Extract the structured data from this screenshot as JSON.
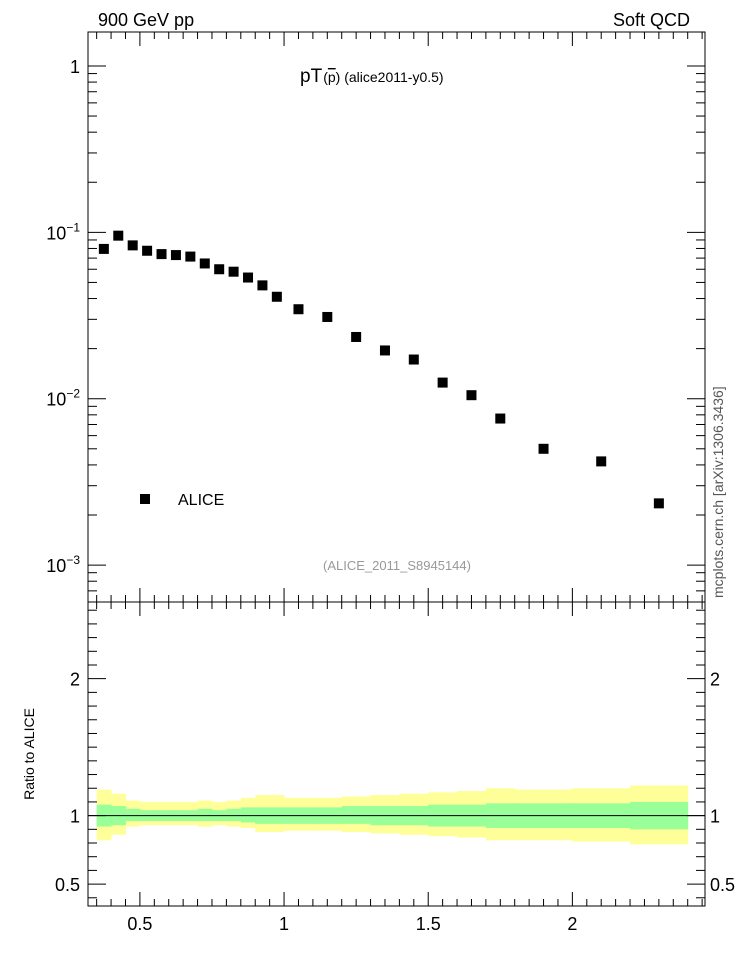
{
  "header": {
    "left": "900 GeV pp",
    "right": "Soft QCD"
  },
  "side_label": "mcplots.cern.ch [arXiv:1306.3436]",
  "chart_data": [
    {
      "type": "scatter",
      "title_main": "pT",
      "title_particle": "p",
      "title_suffix": "(alice2011-y0.5)",
      "watermark": "(ALICE_2011_S8945144)",
      "yscale": "log",
      "xlim": [
        0.32,
        2.46
      ],
      "ylim": [
        0.0006,
        1.6
      ],
      "ytick_labels": [
        {
          "value": 1,
          "label": "1",
          "sup": ""
        },
        {
          "value": 0.1,
          "label": "10",
          "sup": "−1"
        },
        {
          "value": 0.01,
          "label": "10",
          "sup": "−2"
        },
        {
          "value": 0.001,
          "label": "10",
          "sup": "−3"
        }
      ],
      "legend_position": "bottom-left",
      "series": [
        {
          "name": "ALICE",
          "color": "#000000",
          "marker": "square",
          "x": [
            0.375,
            0.425,
            0.475,
            0.525,
            0.575,
            0.625,
            0.675,
            0.725,
            0.775,
            0.825,
            0.875,
            0.925,
            0.975,
            1.05,
            1.15,
            1.25,
            1.35,
            1.45,
            1.55,
            1.65,
            1.75,
            1.9,
            2.1,
            2.3
          ],
          "y": [
            0.0795,
            0.0955,
            0.0835,
            0.0775,
            0.074,
            0.073,
            0.0715,
            0.065,
            0.06,
            0.058,
            0.0535,
            0.048,
            0.041,
            0.0345,
            0.031,
            0.0235,
            0.0195,
            0.0172,
            0.0125,
            0.0105,
            0.0076,
            0.005,
            0.0042,
            0.00235
          ]
        }
      ]
    },
    {
      "type": "area",
      "ylabel": "Ratio to ALICE",
      "xlim": [
        0.32,
        2.46
      ],
      "ylim": [
        0.34,
        2.56
      ],
      "x_tick_labels": [
        "0.5",
        "1",
        "1.5",
        "2"
      ],
      "x_tick_values": [
        0.5,
        1,
        1.5,
        2
      ],
      "y_tick_labels": [
        "0.5",
        "1",
        "2"
      ],
      "y_tick_values": [
        0.5,
        1,
        2
      ],
      "reference_line": 1,
      "bin_edges": [
        0.35,
        0.4,
        0.45,
        0.5,
        0.55,
        0.6,
        0.65,
        0.7,
        0.75,
        0.8,
        0.85,
        0.9,
        1.0,
        1.1,
        1.2,
        1.3,
        1.4,
        1.5,
        1.6,
        1.7,
        1.8,
        2.0,
        2.2,
        2.4
      ],
      "bands": [
        {
          "name": "yellow-band",
          "color": "#ffff99",
          "lo": [
            0.82,
            0.86,
            0.92,
            0.93,
            0.93,
            0.93,
            0.93,
            0.92,
            0.93,
            0.92,
            0.91,
            0.88,
            0.89,
            0.89,
            0.88,
            0.87,
            0.86,
            0.85,
            0.84,
            0.82,
            0.82,
            0.81,
            0.79,
            0.77
          ],
          "hi": [
            1.19,
            1.16,
            1.11,
            1.1,
            1.1,
            1.1,
            1.1,
            1.11,
            1.1,
            1.11,
            1.13,
            1.15,
            1.13,
            1.13,
            1.14,
            1.15,
            1.16,
            1.17,
            1.18,
            1.2,
            1.19,
            1.2,
            1.22,
            1.25
          ]
        },
        {
          "name": "green-band",
          "color": "#99ff99",
          "lo": [
            0.92,
            0.93,
            0.96,
            0.96,
            0.96,
            0.96,
            0.96,
            0.96,
            0.96,
            0.96,
            0.95,
            0.94,
            0.94,
            0.94,
            0.94,
            0.93,
            0.93,
            0.92,
            0.92,
            0.91,
            0.91,
            0.91,
            0.9,
            0.89
          ],
          "hi": [
            1.08,
            1.07,
            1.05,
            1.04,
            1.04,
            1.04,
            1.04,
            1.05,
            1.04,
            1.05,
            1.06,
            1.06,
            1.06,
            1.06,
            1.07,
            1.07,
            1.07,
            1.08,
            1.08,
            1.09,
            1.09,
            1.09,
            1.1,
            1.11
          ]
        }
      ]
    }
  ]
}
